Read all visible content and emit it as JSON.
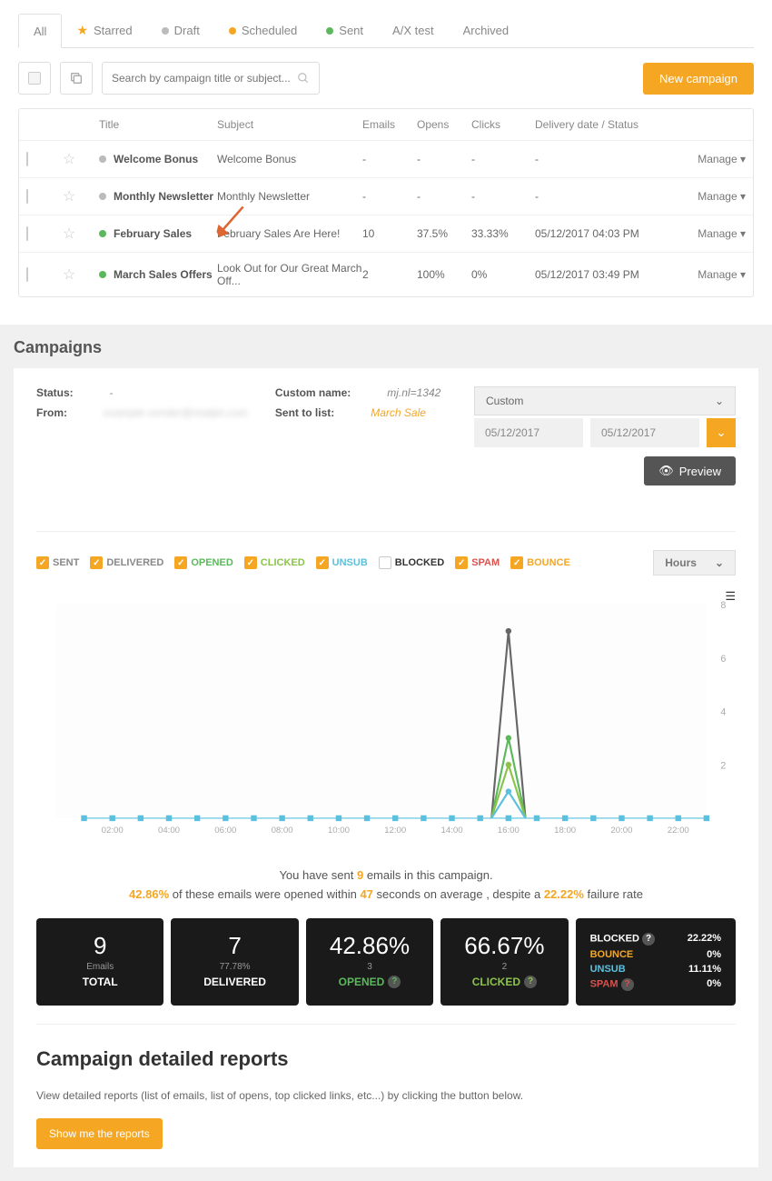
{
  "tabs": [
    {
      "label": "All",
      "active": true
    },
    {
      "label": "Starred",
      "icon": "star",
      "color": "#f5a623"
    },
    {
      "label": "Draft",
      "icon": "dot",
      "color": "#bbb"
    },
    {
      "label": "Scheduled",
      "icon": "dot",
      "color": "#f5a623"
    },
    {
      "label": "Sent",
      "icon": "dot",
      "color": "#5cb85c"
    },
    {
      "label": "A/X test"
    },
    {
      "label": "Archived"
    }
  ],
  "search": {
    "placeholder": "Search by campaign title or subject..."
  },
  "new_btn": "New campaign",
  "columns": [
    "Title",
    "Subject",
    "Emails",
    "Opens",
    "Clicks",
    "Delivery date / Status"
  ],
  "manage_label": "Manage",
  "rows": [
    {
      "title": "Welcome Bonus",
      "subject": "Welcome Bonus",
      "emails": "-",
      "opens": "-",
      "clicks": "-",
      "delivery": "-",
      "dot": "#bbb"
    },
    {
      "title": "Monthly Newsletter",
      "subject": "Monthly Newsletter",
      "emails": "-",
      "opens": "-",
      "clicks": "-",
      "delivery": "-",
      "dot": "#bbb"
    },
    {
      "title": "February Sales",
      "subject": "February Sales Are Here!",
      "emails": "10",
      "opens": "37.5%",
      "clicks": "33.33%",
      "delivery": "05/12/2017 04:03 PM",
      "dot": "#5cb85c",
      "arrow": true
    },
    {
      "title": "March Sales Offers",
      "subject": "Look Out for Our Great March Off...",
      "emails": "2",
      "opens": "100%",
      "clicks": "0%",
      "delivery": "05/12/2017 03:49 PM",
      "dot": "#5cb85c"
    }
  ],
  "campaigns_title": "Campaigns",
  "meta": {
    "status_label": "Status:",
    "status_val": "-",
    "from_label": "From:",
    "custom_label": "Custom name:",
    "custom_val": "mj.nl=1342",
    "sent_label": "Sent to list:",
    "sent_val": "March Sale"
  },
  "custom_sel": "Custom",
  "date1": "05/12/2017",
  "date2": "05/12/2017",
  "preview_label": "Preview",
  "legend": [
    {
      "label": "SENT",
      "color": "#888",
      "on": true
    },
    {
      "label": "DELIVERED",
      "color": "#888",
      "on": true
    },
    {
      "label": "OPENED",
      "color": "#5cb85c",
      "on": true
    },
    {
      "label": "CLICKED",
      "color": "#8bc34a",
      "on": true
    },
    {
      "label": "UNSUB",
      "color": "#5bc0de",
      "on": true
    },
    {
      "label": "BLOCKED",
      "color": "#333",
      "on": false
    },
    {
      "label": "SPAM",
      "color": "#d9534f",
      "on": true
    },
    {
      "label": "BOUNCE",
      "color": "#f5a623",
      "on": true
    }
  ],
  "hours_label": "Hours",
  "chart": {
    "x_labels": [
      "02:00",
      "04:00",
      "06:00",
      "08:00",
      "10:00",
      "12:00",
      "14:00",
      "16:00",
      "18:00",
      "20:00",
      "22:00"
    ],
    "y_labels": [
      "2",
      "4",
      "6",
      "8"
    ],
    "y_max": 8,
    "baseline_color": "#5bc0de",
    "baseline_marker": "#5bc0de",
    "series": [
      {
        "color": "#666",
        "peak_x": 16,
        "peak_y": 7,
        "width": 0.6
      },
      {
        "color": "#5cb85c",
        "peak_x": 16,
        "peak_y": 3,
        "width": 0.6
      },
      {
        "color": "#8bc34a",
        "peak_x": 16,
        "peak_y": 2,
        "width": 0.6
      },
      {
        "color": "#5bc0de",
        "peak_x": 16,
        "peak_y": 1,
        "width": 0.6
      }
    ],
    "background": "#fdfdfd"
  },
  "summary": {
    "line1_a": "You have sent ",
    "line1_b": "9",
    "line1_c": " emails in this campaign.",
    "line2_a": "42.86%",
    "line2_b": " of these emails were opened within ",
    "line2_c": "47",
    "line2_d": " seconds on average , despite a ",
    "line2_e": "22.22%",
    "line2_f": " failure rate"
  },
  "stats": [
    {
      "big": "9",
      "sub": "Emails",
      "label": "TOTAL",
      "label_color": "#fff"
    },
    {
      "big": "7",
      "sub": "77.78%",
      "label": "DELIVERED",
      "label_color": "#fff"
    },
    {
      "big": "42.86%",
      "sub": "3",
      "label": "OPENED",
      "label_color": "#5cb85c",
      "q": true
    },
    {
      "big": "66.67%",
      "sub": "2",
      "label": "CLICKED",
      "label_color": "#8bc34a",
      "q": true
    }
  ],
  "stats_small": [
    {
      "label": "BLOCKED",
      "val": "22.22%",
      "color": "#fff",
      "q": true
    },
    {
      "label": "BOUNCE",
      "val": "0%",
      "color": "#f5a623"
    },
    {
      "label": "UNSUB",
      "val": "11.11%",
      "color": "#5bc0de"
    },
    {
      "label": "SPAM",
      "val": "0%",
      "color": "#d9534f",
      "q": true
    }
  ],
  "reports": {
    "title": "Campaign detailed reports",
    "desc": "View detailed reports (list of emails, list of opens, top clicked links, etc...) by clicking the button below.",
    "btn": "Show me the reports"
  }
}
